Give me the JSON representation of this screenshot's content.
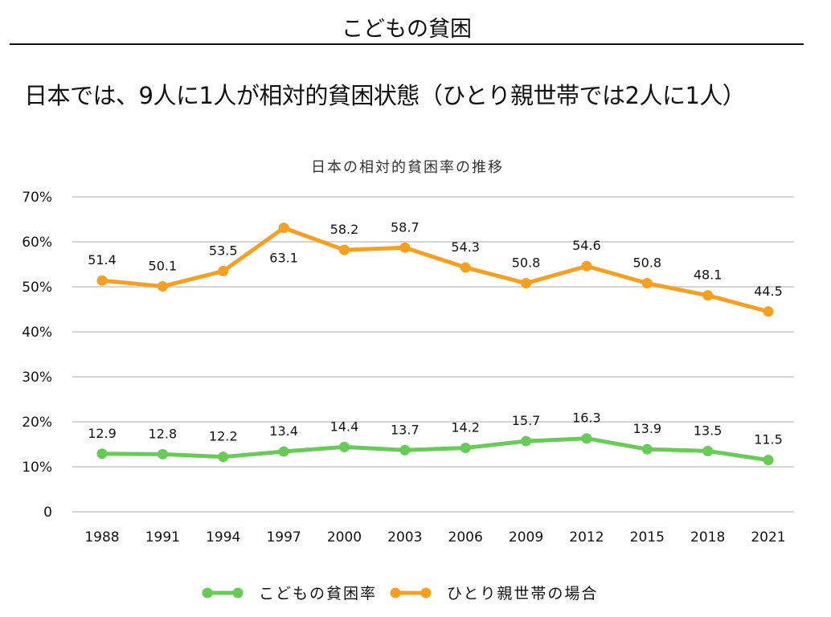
{
  "page": {
    "title": "こどもの貧困",
    "headline": "日本では、9人に1人が相対的貧困状態（ひとり親世帯では2人に1人）"
  },
  "chart_data": {
    "type": "line",
    "title": "日本の相対的貧困率の推移",
    "xlabel": "",
    "ylabel": "",
    "ylim": [
      0,
      70
    ],
    "yticks": [
      0,
      10,
      20,
      30,
      40,
      50,
      60,
      70
    ],
    "ytick_labels": [
      "0",
      "10%",
      "20%",
      "30%",
      "40%",
      "50%",
      "60%",
      "70%"
    ],
    "grid": true,
    "legend_position": "bottom",
    "categories": [
      "1988",
      "1991",
      "1994",
      "1997",
      "2000",
      "2003",
      "2006",
      "2009",
      "2012",
      "2015",
      "2018",
      "2021"
    ],
    "series": [
      {
        "name": "こどもの貧困率",
        "color": "#66cc55",
        "values": [
          12.9,
          12.8,
          12.2,
          13.4,
          14.4,
          13.7,
          14.2,
          15.7,
          16.3,
          13.9,
          13.5,
          11.5
        ],
        "label_side": [
          "above",
          "above",
          "above",
          "above",
          "above",
          "above",
          "above",
          "above",
          "above",
          "above",
          "above",
          "above"
        ]
      },
      {
        "name": "ひとり親世帯の場合",
        "color": "#f7a020",
        "values": [
          51.4,
          50.1,
          53.5,
          63.1,
          58.2,
          58.7,
          54.3,
          50.8,
          54.6,
          50.8,
          48.1,
          44.5
        ],
        "label_side": [
          "above",
          "above",
          "above",
          "below",
          "above",
          "above",
          "above",
          "above",
          "above",
          "above",
          "above",
          "above"
        ]
      }
    ]
  }
}
